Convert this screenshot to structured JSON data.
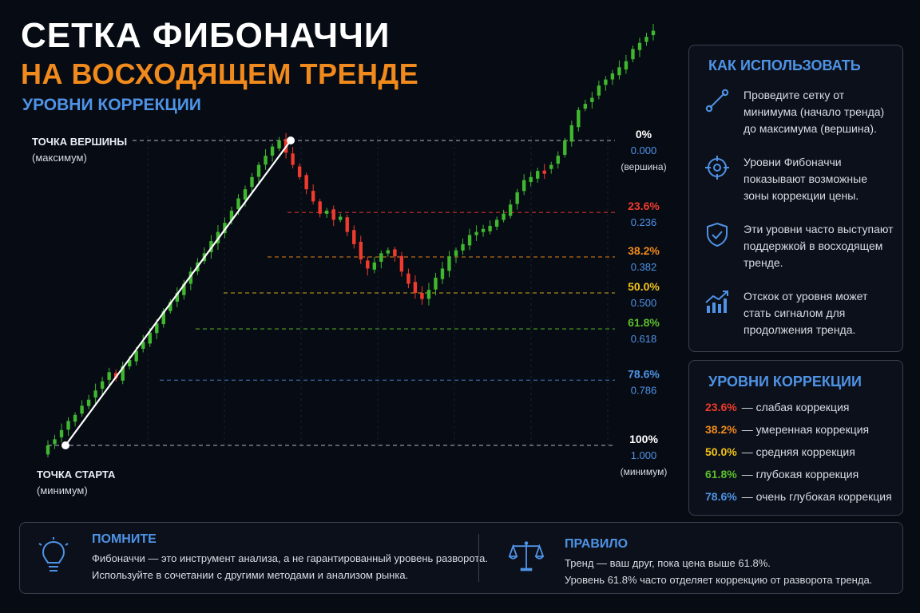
{
  "header": {
    "title_line1": "СЕТКА ФИБОНАЧЧИ",
    "title_line2": "НА ВОСХОДЯЩЕМ ТРЕНДЕ",
    "subtitle": "УРОВНИ КОРРЕКЦИИ"
  },
  "chart_data": {
    "type": "candlestick",
    "swing_high": {
      "label": "ТОЧКА ВЕРШИНЫ",
      "sublabel": "(максимум)"
    },
    "swing_low": {
      "label": "ТОЧКА СТАРТА",
      "sublabel": "(минимум)"
    },
    "levels": [
      {
        "pct": "0%",
        "value": "0.000",
        "note": "(вершина)",
        "color": "#ffffff",
        "value_color": "#4f93e6"
      },
      {
        "pct": "23.6%",
        "value": "0.236",
        "note": "",
        "color": "#ef3b2d",
        "value_color": "#4f93e6"
      },
      {
        "pct": "38.2%",
        "value": "0.382",
        "note": "",
        "color": "#f08a1c",
        "value_color": "#4f93e6"
      },
      {
        "pct": "50.0%",
        "value": "0.500",
        "note": "",
        "color": "#f2c318",
        "value_color": "#4f93e6"
      },
      {
        "pct": "61.8%",
        "value": "0.618",
        "note": "",
        "color": "#5cbf2a",
        "value_color": "#4f93e6"
      },
      {
        "pct": "78.6%",
        "value": "0.786",
        "note": "",
        "color": "#4f93e6",
        "value_color": "#4f93e6"
      },
      {
        "pct": "100%",
        "value": "1.000",
        "note": "(минимум)",
        "color": "#ffffff",
        "value_color": "#4f93e6"
      }
    ],
    "path_ratios": [
      1.0,
      0.98,
      0.95,
      0.92,
      0.9,
      0.87,
      0.85,
      0.82,
      0.79,
      0.76,
      0.78,
      0.74,
      0.72,
      0.69,
      0.66,
      0.63,
      0.6,
      0.56,
      0.53,
      0.5,
      0.47,
      0.43,
      0.4,
      0.37,
      0.33,
      0.3,
      0.27,
      0.23,
      0.19,
      0.16,
      0.12,
      0.08,
      0.05,
      0.02,
      0.0,
      0.04,
      0.08,
      0.12,
      0.16,
      0.2,
      0.24,
      0.23,
      0.26,
      0.25,
      0.3,
      0.34,
      0.39,
      0.42,
      0.4,
      0.37,
      0.36,
      0.38,
      0.43,
      0.47,
      0.5,
      0.52,
      0.49,
      0.45,
      0.42,
      0.38,
      0.36,
      0.34,
      0.31,
      0.3,
      0.29,
      0.28,
      0.26,
      0.24,
      0.21,
      0.17,
      0.13,
      0.12,
      0.1,
      0.1,
      0.08,
      0.05,
      0.0,
      -0.05,
      -0.1,
      -0.12,
      -0.14,
      -0.18,
      -0.2,
      -0.22,
      -0.24,
      -0.26,
      -0.3,
      -0.32,
      -0.34,
      -0.36
    ]
  },
  "how_to": {
    "title": "КАК ИСПОЛЬЗОВАТЬ",
    "items": [
      {
        "icon": "line-tool-icon",
        "lines": [
          "Проведите сетку от",
          "минимума (начало тренда)",
          "до максимума (вершина)."
        ]
      },
      {
        "icon": "target-icon",
        "lines": [
          "Уровни Фибоначчи",
          "показывают возможные",
          "зоны коррекции цены."
        ]
      },
      {
        "icon": "shield-check-icon",
        "lines": [
          "Эти уровни часто выступают",
          "поддержкой в восходящем",
          "тренде."
        ]
      },
      {
        "icon": "growth-chart-icon",
        "lines": [
          "Отскок от уровня может",
          "стать сигналом для",
          "продолжения тренда."
        ]
      }
    ]
  },
  "levels_panel": {
    "title": "УРОВНИ КОРРЕКЦИИ",
    "rows": [
      {
        "pct": "23.6%",
        "desc": "— слабая коррекция",
        "color": "#ef3b2d"
      },
      {
        "pct": "38.2%",
        "desc": "— умеренная коррекция",
        "color": "#f08a1c"
      },
      {
        "pct": "50.0%",
        "desc": "— средняя коррекция",
        "color": "#f2c318"
      },
      {
        "pct": "61.8%",
        "desc": "— глубокая коррекция",
        "color": "#5cbf2a"
      },
      {
        "pct": "78.6%",
        "desc": "— очень глубокая коррекция",
        "color": "#4f93e6"
      }
    ]
  },
  "remember": {
    "icon": "lightbulb-icon",
    "title": "ПОМНИТЕ",
    "line1": "Фибоначчи — это инструмент анализа, а не гарантированный уровень разворота.",
    "line2": "Используйте в сочетании с другими методами и анализом рынка."
  },
  "rule": {
    "icon": "scales-icon",
    "title": "ПРАВИЛО",
    "line1": "Тренд — ваш друг, пока цена выше 61.8%.",
    "line2": "Уровень 61.8% часто отделяет коррекцию от разворота тренда."
  }
}
